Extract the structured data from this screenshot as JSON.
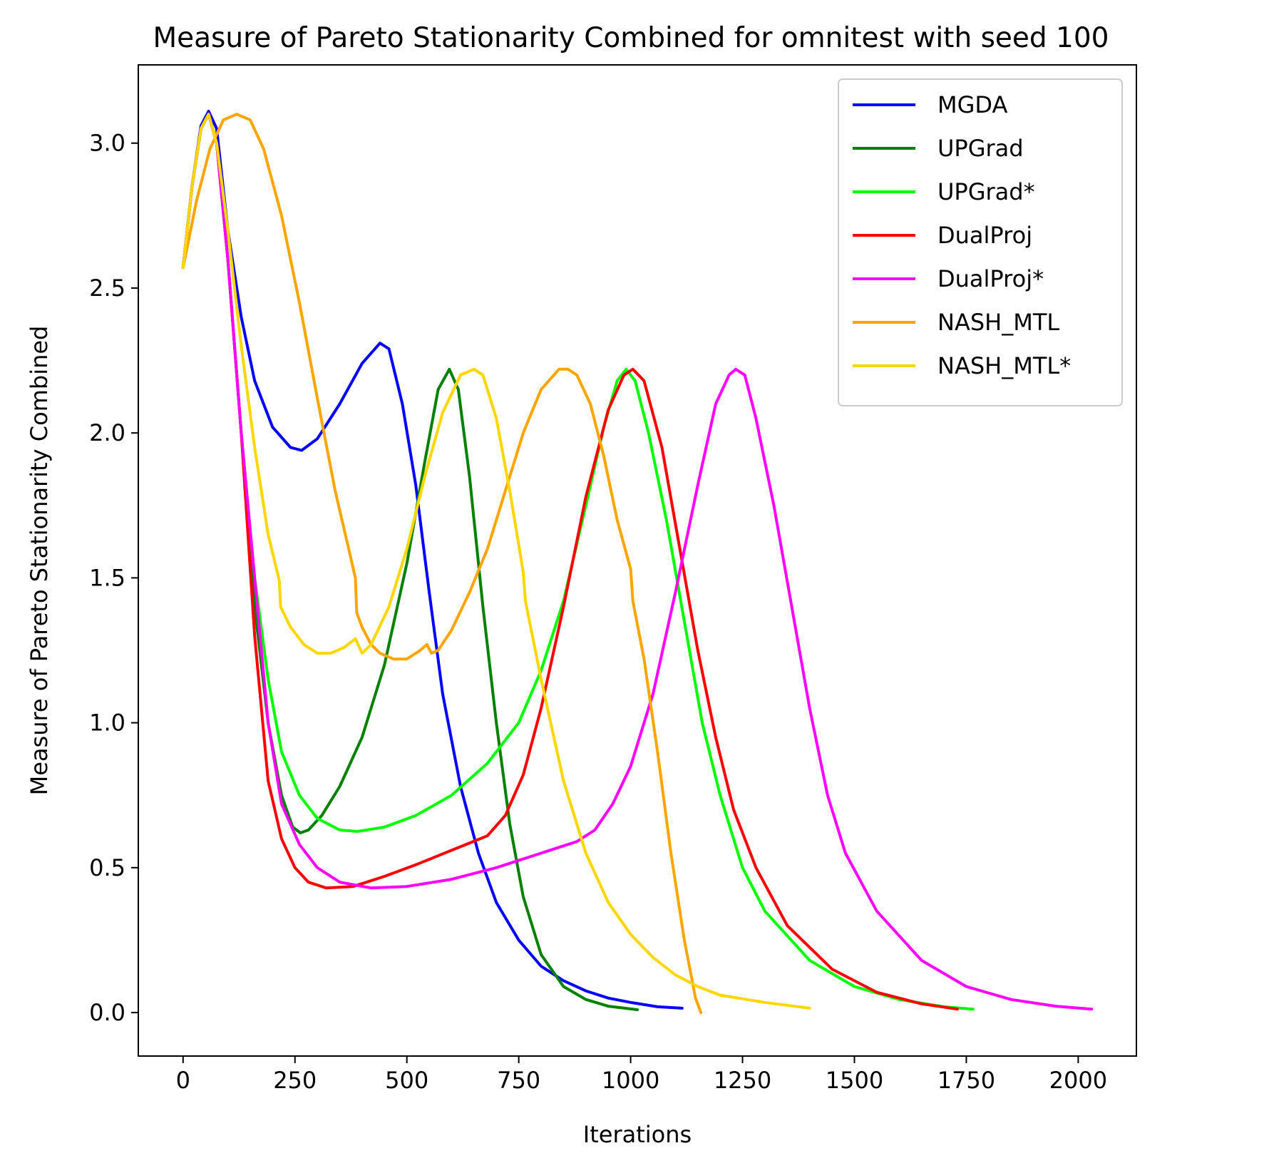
{
  "chart_data": {
    "type": "line",
    "title": "Measure of Pareto Stationarity Combined for omnitest with seed 100",
    "xlabel": "Iterations",
    "ylabel": "Measure of Pareto Stationarity Combined",
    "xlim": [
      -100,
      2130
    ],
    "ylim": [
      -0.15,
      3.27
    ],
    "xticks": [
      0,
      250,
      500,
      750,
      1000,
      1250,
      1500,
      1750,
      2000
    ],
    "xtick_labels": [
      "0",
      "250",
      "500",
      "750",
      "1000",
      "1250",
      "1500",
      "1750",
      "2000"
    ],
    "yticks": [
      0.0,
      0.5,
      1.0,
      1.5,
      2.0,
      2.5,
      3.0
    ],
    "ytick_labels": [
      "0.0",
      "0.5",
      "1.0",
      "1.5",
      "2.0",
      "2.5",
      "3.0"
    ],
    "grid": false,
    "legend_position": "top-right",
    "series": [
      {
        "name": "MGDA",
        "color": "#0000ff",
        "points": [
          [
            0,
            2.57
          ],
          [
            20,
            2.85
          ],
          [
            40,
            3.06
          ],
          [
            57,
            3.11
          ],
          [
            75,
            3.05
          ],
          [
            100,
            2.7
          ],
          [
            130,
            2.4
          ],
          [
            160,
            2.18
          ],
          [
            200,
            2.02
          ],
          [
            240,
            1.95
          ],
          [
            265,
            1.94
          ],
          [
            300,
            1.98
          ],
          [
            350,
            2.1
          ],
          [
            400,
            2.24
          ],
          [
            440,
            2.31
          ],
          [
            460,
            2.29
          ],
          [
            490,
            2.1
          ],
          [
            520,
            1.82
          ],
          [
            550,
            1.45
          ],
          [
            580,
            1.1
          ],
          [
            620,
            0.78
          ],
          [
            660,
            0.55
          ],
          [
            700,
            0.38
          ],
          [
            750,
            0.25
          ],
          [
            800,
            0.16
          ],
          [
            850,
            0.11
          ],
          [
            900,
            0.075
          ],
          [
            950,
            0.05
          ],
          [
            1000,
            0.035
          ],
          [
            1060,
            0.02
          ],
          [
            1115,
            0.015
          ]
        ]
      },
      {
        "name": "UPGrad",
        "color": "#008000",
        "points": [
          [
            0,
            2.57
          ],
          [
            20,
            2.85
          ],
          [
            40,
            3.05
          ],
          [
            57,
            3.1
          ],
          [
            75,
            3.0
          ],
          [
            100,
            2.6
          ],
          [
            130,
            2.0
          ],
          [
            160,
            1.4
          ],
          [
            190,
            1.0
          ],
          [
            220,
            0.75
          ],
          [
            245,
            0.64
          ],
          [
            262,
            0.62
          ],
          [
            280,
            0.63
          ],
          [
            310,
            0.68
          ],
          [
            350,
            0.78
          ],
          [
            400,
            0.95
          ],
          [
            450,
            1.2
          ],
          [
            500,
            1.55
          ],
          [
            540,
            1.9
          ],
          [
            570,
            2.15
          ],
          [
            595,
            2.22
          ],
          [
            615,
            2.15
          ],
          [
            640,
            1.85
          ],
          [
            670,
            1.4
          ],
          [
            700,
            1.0
          ],
          [
            730,
            0.65
          ],
          [
            760,
            0.4
          ],
          [
            800,
            0.2
          ],
          [
            850,
            0.09
          ],
          [
            900,
            0.045
          ],
          [
            950,
            0.022
          ],
          [
            1015,
            0.01
          ]
        ]
      },
      {
        "name": "UPGrad*",
        "color": "#00ff00",
        "points": [
          [
            0,
            2.57
          ],
          [
            20,
            2.85
          ],
          [
            40,
            3.05
          ],
          [
            57,
            3.1
          ],
          [
            75,
            3.0
          ],
          [
            100,
            2.6
          ],
          [
            130,
            2.0
          ],
          [
            160,
            1.5
          ],
          [
            190,
            1.15
          ],
          [
            220,
            0.9
          ],
          [
            260,
            0.75
          ],
          [
            300,
            0.67
          ],
          [
            350,
            0.63
          ],
          [
            390,
            0.625
          ],
          [
            450,
            0.64
          ],
          [
            520,
            0.68
          ],
          [
            600,
            0.75
          ],
          [
            680,
            0.86
          ],
          [
            750,
            1.0
          ],
          [
            800,
            1.18
          ],
          [
            850,
            1.42
          ],
          [
            900,
            1.75
          ],
          [
            940,
            2.02
          ],
          [
            970,
            2.18
          ],
          [
            990,
            2.22
          ],
          [
            1010,
            2.18
          ],
          [
            1040,
            2.0
          ],
          [
            1080,
            1.7
          ],
          [
            1120,
            1.35
          ],
          [
            1160,
            1.0
          ],
          [
            1200,
            0.75
          ],
          [
            1250,
            0.5
          ],
          [
            1300,
            0.35
          ],
          [
            1400,
            0.18
          ],
          [
            1500,
            0.09
          ],
          [
            1600,
            0.045
          ],
          [
            1700,
            0.02
          ],
          [
            1765,
            0.012
          ]
        ]
      },
      {
        "name": "DualProj",
        "color": "#ff0000",
        "points": [
          [
            0,
            2.57
          ],
          [
            20,
            2.85
          ],
          [
            40,
            3.05
          ],
          [
            57,
            3.1
          ],
          [
            75,
            3.0
          ],
          [
            100,
            2.6
          ],
          [
            130,
            2.0
          ],
          [
            160,
            1.3
          ],
          [
            190,
            0.8
          ],
          [
            220,
            0.6
          ],
          [
            250,
            0.5
          ],
          [
            280,
            0.45
          ],
          [
            320,
            0.43
          ],
          [
            380,
            0.435
          ],
          [
            450,
            0.47
          ],
          [
            520,
            0.51
          ],
          [
            600,
            0.56
          ],
          [
            680,
            0.61
          ],
          [
            720,
            0.68
          ],
          [
            760,
            0.82
          ],
          [
            800,
            1.05
          ],
          [
            850,
            1.4
          ],
          [
            900,
            1.78
          ],
          [
            950,
            2.08
          ],
          [
            985,
            2.2
          ],
          [
            1005,
            2.22
          ],
          [
            1030,
            2.18
          ],
          [
            1070,
            1.95
          ],
          [
            1110,
            1.6
          ],
          [
            1150,
            1.25
          ],
          [
            1190,
            0.95
          ],
          [
            1230,
            0.7
          ],
          [
            1280,
            0.5
          ],
          [
            1350,
            0.3
          ],
          [
            1450,
            0.15
          ],
          [
            1550,
            0.07
          ],
          [
            1650,
            0.03
          ],
          [
            1730,
            0.012
          ]
        ]
      },
      {
        "name": "DualProj*",
        "color": "#ff00ff",
        "points": [
          [
            0,
            2.57
          ],
          [
            20,
            2.85
          ],
          [
            40,
            3.05
          ],
          [
            57,
            3.1
          ],
          [
            75,
            3.0
          ],
          [
            100,
            2.6
          ],
          [
            130,
            2.0
          ],
          [
            160,
            1.5
          ],
          [
            190,
            1.0
          ],
          [
            220,
            0.72
          ],
          [
            260,
            0.58
          ],
          [
            300,
            0.5
          ],
          [
            350,
            0.45
          ],
          [
            420,
            0.43
          ],
          [
            500,
            0.435
          ],
          [
            600,
            0.46
          ],
          [
            700,
            0.5
          ],
          [
            800,
            0.55
          ],
          [
            880,
            0.59
          ],
          [
            920,
            0.63
          ],
          [
            960,
            0.72
          ],
          [
            1000,
            0.85
          ],
          [
            1050,
            1.1
          ],
          [
            1100,
            1.45
          ],
          [
            1150,
            1.82
          ],
          [
            1190,
            2.1
          ],
          [
            1220,
            2.2
          ],
          [
            1235,
            2.22
          ],
          [
            1255,
            2.2
          ],
          [
            1280,
            2.05
          ],
          [
            1320,
            1.75
          ],
          [
            1360,
            1.4
          ],
          [
            1400,
            1.05
          ],
          [
            1440,
            0.75
          ],
          [
            1480,
            0.55
          ],
          [
            1550,
            0.35
          ],
          [
            1650,
            0.18
          ],
          [
            1750,
            0.09
          ],
          [
            1850,
            0.045
          ],
          [
            1950,
            0.022
          ],
          [
            2030,
            0.012
          ]
        ]
      },
      {
        "name": "NASH_MTL",
        "color": "#ffa500",
        "points": [
          [
            0,
            2.57
          ],
          [
            30,
            2.8
          ],
          [
            60,
            2.98
          ],
          [
            90,
            3.08
          ],
          [
            120,
            3.1
          ],
          [
            150,
            3.08
          ],
          [
            180,
            2.98
          ],
          [
            220,
            2.75
          ],
          [
            260,
            2.45
          ],
          [
            300,
            2.12
          ],
          [
            340,
            1.8
          ],
          [
            370,
            1.6
          ],
          [
            385,
            1.5
          ],
          [
            388,
            1.38
          ],
          [
            400,
            1.33
          ],
          [
            420,
            1.27
          ],
          [
            440,
            1.24
          ],
          [
            470,
            1.22
          ],
          [
            500,
            1.22
          ],
          [
            530,
            1.25
          ],
          [
            545,
            1.27
          ],
          [
            555,
            1.24
          ],
          [
            570,
            1.25
          ],
          [
            600,
            1.32
          ],
          [
            640,
            1.45
          ],
          [
            680,
            1.6
          ],
          [
            720,
            1.8
          ],
          [
            760,
            2.0
          ],
          [
            800,
            2.15
          ],
          [
            840,
            2.22
          ],
          [
            860,
            2.22
          ],
          [
            880,
            2.2
          ],
          [
            910,
            2.1
          ],
          [
            940,
            1.92
          ],
          [
            970,
            1.7
          ],
          [
            1000,
            1.53
          ],
          [
            1005,
            1.42
          ],
          [
            1030,
            1.22
          ],
          [
            1060,
            0.9
          ],
          [
            1090,
            0.55
          ],
          [
            1120,
            0.25
          ],
          [
            1145,
            0.05
          ],
          [
            1157,
            0.0
          ]
        ]
      },
      {
        "name": "NASH_MTL*",
        "color": "#ffd700",
        "points": [
          [
            0,
            2.57
          ],
          [
            20,
            2.85
          ],
          [
            40,
            3.05
          ],
          [
            57,
            3.1
          ],
          [
            75,
            3.0
          ],
          [
            100,
            2.7
          ],
          [
            130,
            2.3
          ],
          [
            160,
            1.95
          ],
          [
            190,
            1.65
          ],
          [
            215,
            1.49
          ],
          [
            218,
            1.4
          ],
          [
            240,
            1.33
          ],
          [
            270,
            1.27
          ],
          [
            300,
            1.24
          ],
          [
            330,
            1.24
          ],
          [
            360,
            1.26
          ],
          [
            385,
            1.29
          ],
          [
            400,
            1.24
          ],
          [
            420,
            1.27
          ],
          [
            460,
            1.4
          ],
          [
            500,
            1.6
          ],
          [
            540,
            1.85
          ],
          [
            580,
            2.07
          ],
          [
            620,
            2.2
          ],
          [
            650,
            2.22
          ],
          [
            670,
            2.2
          ],
          [
            700,
            2.05
          ],
          [
            730,
            1.8
          ],
          [
            760,
            1.52
          ],
          [
            765,
            1.42
          ],
          [
            800,
            1.15
          ],
          [
            850,
            0.8
          ],
          [
            900,
            0.55
          ],
          [
            950,
            0.38
          ],
          [
            1000,
            0.27
          ],
          [
            1050,
            0.19
          ],
          [
            1100,
            0.13
          ],
          [
            1150,
            0.09
          ],
          [
            1200,
            0.06
          ],
          [
            1300,
            0.035
          ],
          [
            1400,
            0.015
          ]
        ]
      }
    ]
  }
}
